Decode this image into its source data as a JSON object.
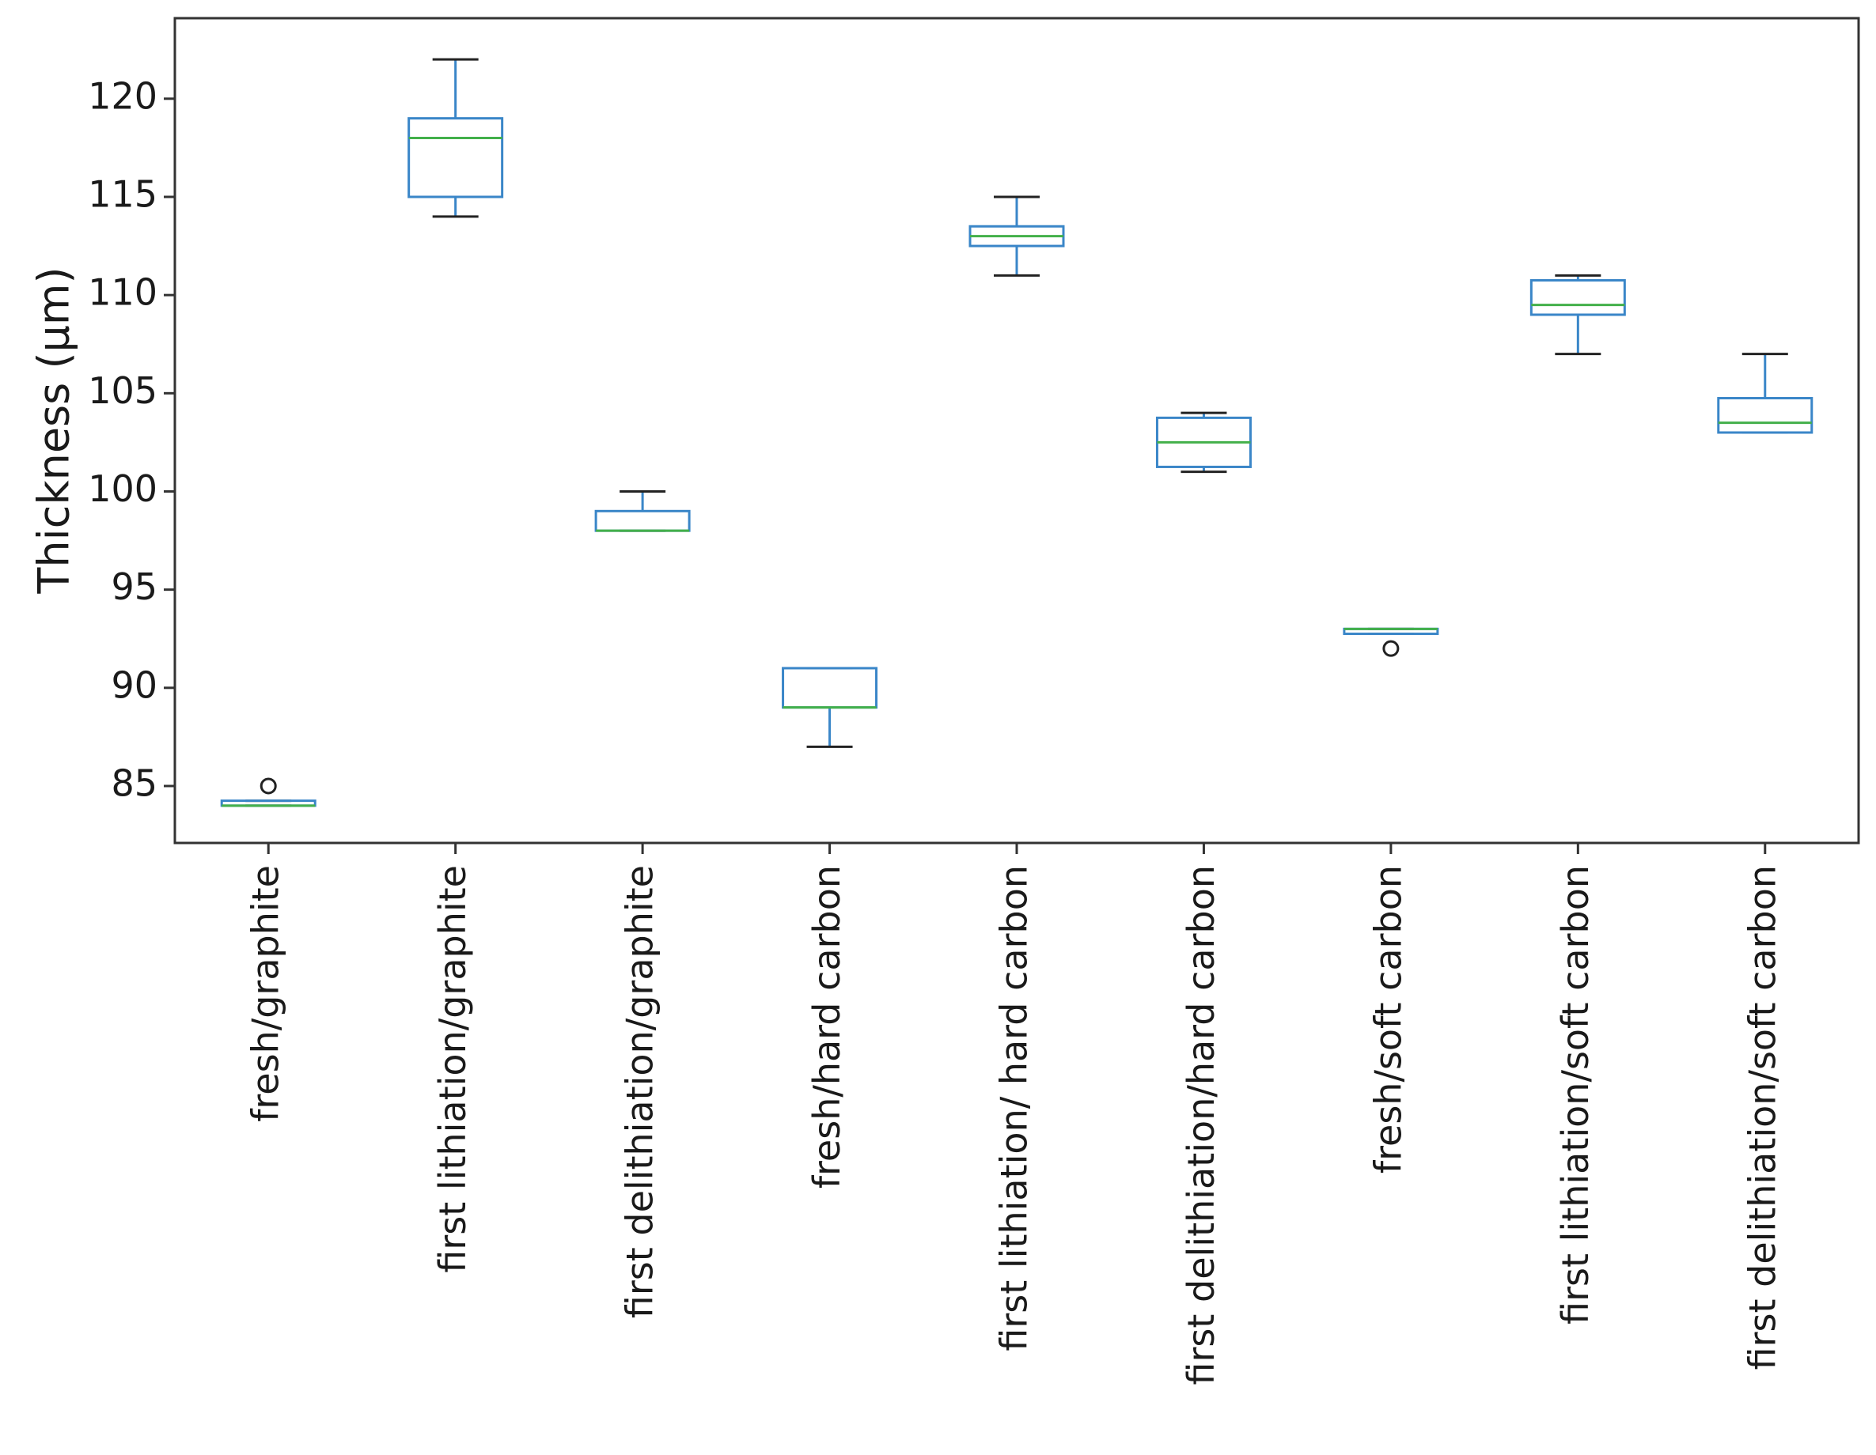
{
  "chart_data": {
    "type": "box",
    "title": "",
    "xlabel": "",
    "ylabel": "Thickness (μm)",
    "ylim": [
      82.1,
      124.1
    ],
    "yticks": [
      85,
      90,
      95,
      100,
      105,
      110,
      115,
      120
    ],
    "grid": false,
    "legend": "none",
    "categories": [
      "fresh/graphite",
      "first lithiation/graphite",
      "first delithiation/graphite",
      "fresh/hard carbon",
      "first lithiation/ hard carbon",
      "first delithiation/hard carbon",
      "fresh/soft carbon",
      "first lithiation/soft carbon",
      "first delithiation/soft carbon"
    ],
    "boxes": [
      {
        "whisker_low": 84.0,
        "q1": 84.0,
        "median": 84.0,
        "q3": 84.25,
        "whisker_high": 84.25,
        "outliers": [
          85.0
        ]
      },
      {
        "whisker_low": 114.0,
        "q1": 115.0,
        "median": 118.0,
        "q3": 119.0,
        "whisker_high": 122.0,
        "outliers": []
      },
      {
        "whisker_low": 98.0,
        "q1": 98.0,
        "median": 98.0,
        "q3": 99.0,
        "whisker_high": 100.0,
        "outliers": []
      },
      {
        "whisker_low": 87.0,
        "q1": 89.0,
        "median": 89.0,
        "q3": 91.0,
        "whisker_high": 91.0,
        "outliers": []
      },
      {
        "whisker_low": 111.0,
        "q1": 112.5,
        "median": 113.0,
        "q3": 113.5,
        "whisker_high": 115.0,
        "outliers": []
      },
      {
        "whisker_low": 101.0,
        "q1": 101.25,
        "median": 102.5,
        "q3": 103.75,
        "whisker_high": 104.0,
        "outliers": []
      },
      {
        "whisker_low": 92.75,
        "q1": 92.75,
        "median": 93.0,
        "q3": 93.0,
        "whisker_high": 93.0,
        "outliers": [
          92.0
        ]
      },
      {
        "whisker_low": 107.0,
        "q1": 109.0,
        "median": 109.5,
        "q3": 110.75,
        "whisker_high": 111.0,
        "outliers": []
      },
      {
        "whisker_low": 103.0,
        "q1": 103.0,
        "median": 103.5,
        "q3": 104.75,
        "whisker_high": 107.0,
        "outliers": []
      }
    ],
    "colors": {
      "box": "#3a86c8",
      "median": "#43b04a",
      "cap": "#222222",
      "outlier": "#222222",
      "axis": "#333333"
    }
  }
}
